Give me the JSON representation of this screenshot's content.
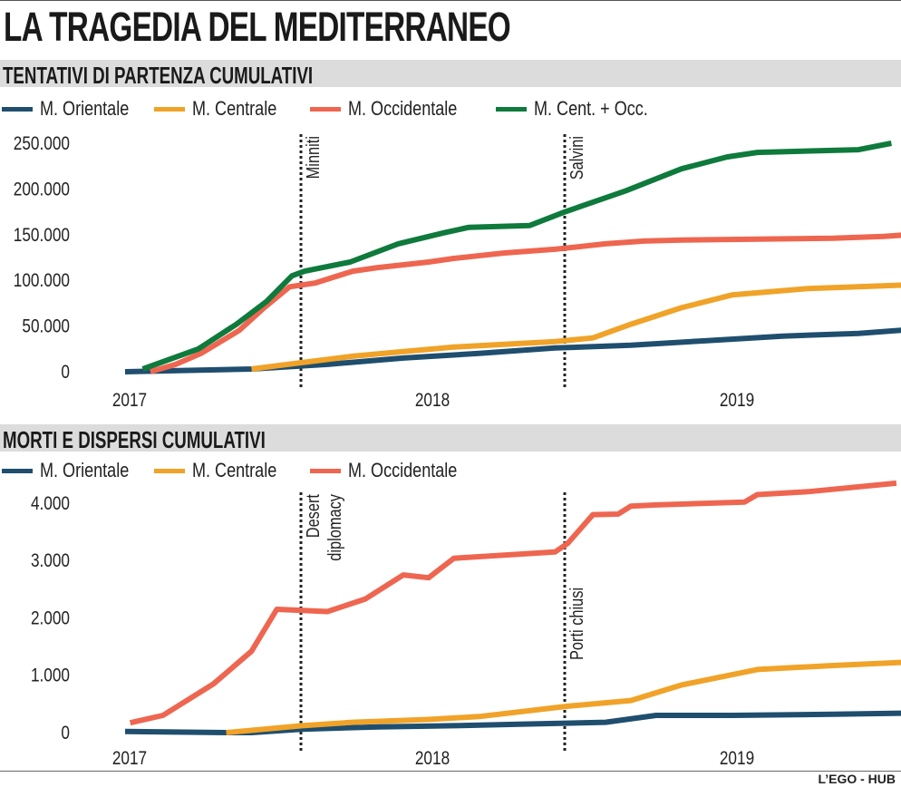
{
  "title": "LA TRAGEDIA DEL MEDITERRANEO",
  "credit": "L’EGO - HUB",
  "colors": {
    "orientale": "#1f4e6e",
    "centrale": "#f0a328",
    "occidentale": "#ee6650",
    "cent_occ": "#0e7a3c",
    "band": "#dcdcdc"
  },
  "chart_data": [
    {
      "type": "line",
      "title": "TENTATIVI DI PARTENZA CUMULATIVI",
      "xlabel": "",
      "ylabel": "",
      "x_unit": "months since Jan 2017",
      "xlim": [
        0,
        31
      ],
      "ylim": [
        0,
        250000
      ],
      "y_ticks": [
        0,
        50000,
        100000,
        150000,
        200000,
        250000
      ],
      "y_tick_labels": [
        "0",
        "50.000",
        "100.000",
        "150.000",
        "200.000",
        "250.000"
      ],
      "x_ticks": [
        0,
        12,
        24
      ],
      "x_tick_labels": [
        "2017",
        "2018",
        "2019"
      ],
      "grid": false,
      "legend": "top",
      "annotations": [
        {
          "label": "Minniti",
          "x": 7
        },
        {
          "label": "Salvini",
          "x": 17.5
        }
      ],
      "series": [
        {
          "name": "M. Orientale",
          "key": "orientale",
          "x": [
            0,
            5,
            8,
            11,
            14,
            17,
            20,
            23,
            26,
            29,
            31
          ],
          "y": [
            0,
            3000,
            8000,
            15000,
            20000,
            26000,
            29000,
            34000,
            39000,
            42000,
            46000
          ]
        },
        {
          "name": "M. Centrale",
          "key": "centrale",
          "x": [
            5,
            7,
            9,
            11,
            13,
            15,
            17,
            18.5,
            20,
            22,
            24,
            27,
            29,
            31
          ],
          "y": [
            3000,
            10000,
            17000,
            22000,
            27000,
            30000,
            33000,
            37000,
            52000,
            70000,
            84000,
            91000,
            93000,
            95000
          ]
        },
        {
          "name": "M. Occidentale",
          "key": "occidentale",
          "x": [
            1,
            2,
            3,
            4.5,
            5.5,
            6.5,
            7.5,
            9,
            10,
            12,
            13,
            15,
            17,
            19,
            20.5,
            22,
            25,
            28,
            30,
            31
          ],
          "y": [
            0,
            8000,
            20000,
            45000,
            70000,
            93000,
            97000,
            110000,
            114000,
            120000,
            124000,
            130000,
            134000,
            140000,
            143000,
            144000,
            145000,
            146000,
            148000,
            150000
          ]
        },
        {
          "name": "M. Cent. + Occ.",
          "key": "cent_occ",
          "x": [
            0.7,
            2.9,
            4.4,
            5.6,
            6.6,
            7.1,
            8.9,
            10.8,
            12.6,
            13.6,
            16,
            17.4,
            19.8,
            22,
            23.8,
            25,
            29,
            30.3
          ],
          "y": [
            3000,
            25000,
            52000,
            77000,
            105000,
            110000,
            120000,
            140000,
            152000,
            158000,
            160000,
            175000,
            198000,
            222000,
            235000,
            240000,
            243000,
            250000
          ]
        }
      ]
    },
    {
      "type": "line",
      "title": "MORTI E DISPERSI CUMULATIVI",
      "xlabel": "",
      "ylabel": "",
      "x_unit": "months since Jan 2017",
      "xlim": [
        0,
        31
      ],
      "ylim": [
        0,
        4000
      ],
      "y_ticks": [
        0,
        1000,
        2000,
        3000,
        4000
      ],
      "y_tick_labels": [
        "0",
        "1.000",
        "2.000",
        "3.000",
        "4.000"
      ],
      "x_ticks": [
        0,
        12,
        24
      ],
      "x_tick_labels": [
        "2017",
        "2018",
        "2019"
      ],
      "grid": false,
      "legend": "top",
      "annotations": [
        {
          "label": "Desert diplomacy",
          "x": 7
        },
        {
          "label": "Porti chiusi",
          "x": 17.5
        }
      ],
      "series": [
        {
          "name": "M. Orientale",
          "key": "orientale",
          "x": [
            0,
            4,
            5,
            7,
            10,
            13,
            16,
            19,
            21,
            24,
            28,
            31
          ],
          "y": [
            20,
            0,
            0,
            60,
            100,
            120,
            150,
            180,
            300,
            300,
            320,
            340
          ]
        },
        {
          "name": "M. Centrale",
          "key": "centrale",
          "x": [
            4,
            7,
            9,
            12,
            14,
            17.5,
            20,
            22,
            25,
            28,
            31
          ],
          "y": [
            0,
            120,
            180,
            230,
            280,
            460,
            560,
            830,
            1100,
            1170,
            1230
          ]
        },
        {
          "name": "M. Occidentale",
          "key": "occidentale",
          "x": [
            0.2,
            1.5,
            3.5,
            5,
            6,
            7,
            8,
            9.5,
            11,
            12,
            13,
            17,
            17.5,
            18.5,
            19.5,
            20,
            21,
            24.5,
            25,
            27,
            30.5
          ],
          "y": [
            170,
            300,
            850,
            1420,
            2150,
            2130,
            2110,
            2330,
            2750,
            2700,
            3040,
            3150,
            3300,
            3800,
            3810,
            3950,
            3970,
            4020,
            4150,
            4200,
            4350
          ]
        }
      ]
    }
  ]
}
